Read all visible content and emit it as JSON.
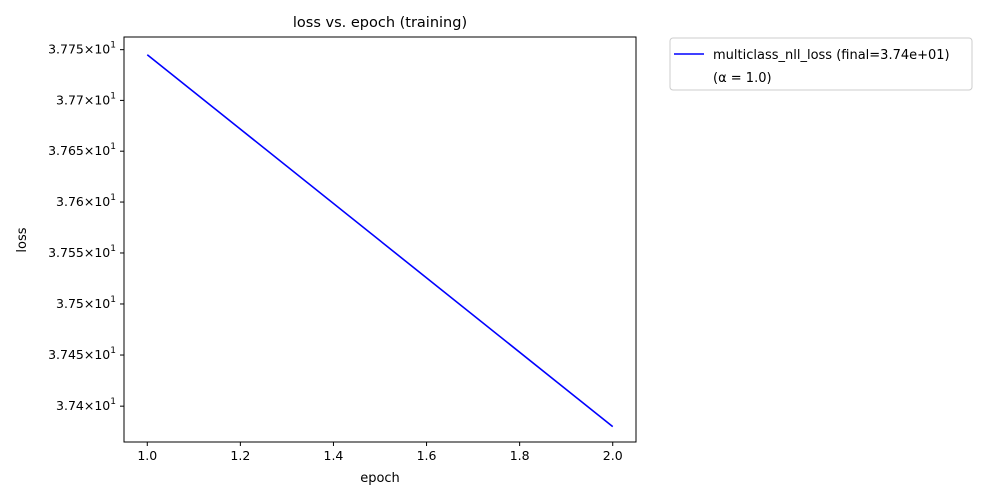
{
  "chart_data": {
    "type": "line",
    "title": "loss vs. epoch (training)",
    "xlabel": "epoch",
    "ylabel": "loss",
    "xlim": [
      0.95,
      2.05
    ],
    "ylim": [
      37.365,
      37.7625
    ],
    "yscale": "log",
    "grid": false,
    "legend_position": "outside-top-right",
    "x_ticks": [
      1.0,
      1.2,
      1.4,
      1.6,
      1.8,
      2.0
    ],
    "x_tick_labels": [
      "1.0",
      "1.2",
      "1.4",
      "1.6",
      "1.8",
      "2.0"
    ],
    "y_ticks": [
      37.4,
      37.45,
      37.5,
      37.55,
      37.6,
      37.65,
      37.7,
      37.75
    ],
    "y_tick_mantissas": [
      "3.74",
      "3.745",
      "3.75",
      "3.755",
      "3.76",
      "3.765",
      "3.77",
      "3.775"
    ],
    "y_tick_base": "10",
    "y_tick_exponent": "1",
    "series": [
      {
        "name": "multiclass_nll_loss (final=3.74e+01)",
        "color": "#0000ff",
        "x": [
          1.0,
          2.0
        ],
        "y": [
          37.745,
          37.38
        ]
      }
    ],
    "legend_extra": "(α = 1.0)"
  }
}
